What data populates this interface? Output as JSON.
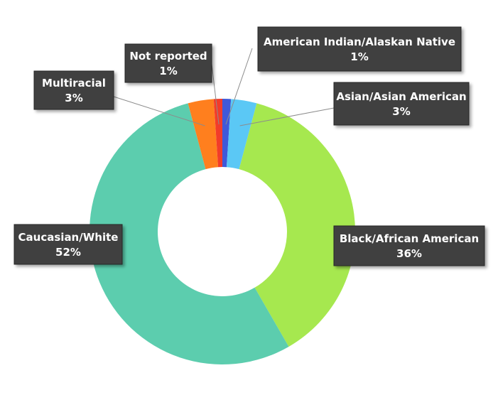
{
  "chart_data": {
    "type": "pie",
    "variant": "donut",
    "legend": "none",
    "slices": [
      {
        "name": "American Indian/Alaskan Native",
        "value": 1,
        "label": "1%",
        "color": "#3f59d9"
      },
      {
        "name": "Asian/Asian American",
        "value": 3,
        "label": "3%",
        "color": "#5bc8f5"
      },
      {
        "name": "Black/African American",
        "value": 36,
        "label": "36%",
        "color": "#a6e84f"
      },
      {
        "name": "Caucasian/White",
        "value": 52,
        "label": "52%",
        "color": "#5ccdae"
      },
      {
        "name": "Multiracial",
        "value": 3,
        "label": "3%",
        "color": "#ff7f1e"
      },
      {
        "name": "Not reported",
        "value": 1,
        "label": "1%",
        "color": "#f23c2a"
      }
    ]
  }
}
